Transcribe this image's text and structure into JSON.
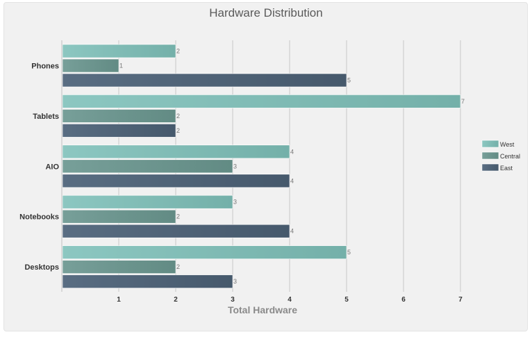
{
  "chart_data": {
    "type": "bar",
    "orientation": "horizontal",
    "title": "Hardware Distribution",
    "xlabel": "Total Hardware",
    "ylabel": "",
    "categories": [
      "Phones",
      "Tablets",
      "AIO",
      "Notebooks",
      "Desktops"
    ],
    "series": [
      {
        "name": "West",
        "values": [
          2,
          7,
          4,
          3,
          5
        ],
        "color": "#7fbab4"
      },
      {
        "name": "Central",
        "values": [
          1,
          2,
          3,
          2,
          2
        ],
        "color": "#6b968f"
      },
      {
        "name": "East",
        "values": [
          5,
          2,
          4,
          4,
          3
        ],
        "color": "#4f6478"
      }
    ],
    "xticks": [
      1,
      2,
      3,
      4,
      5,
      6,
      7
    ],
    "xlim": [
      0,
      7
    ],
    "grid": true,
    "legend": "right"
  }
}
